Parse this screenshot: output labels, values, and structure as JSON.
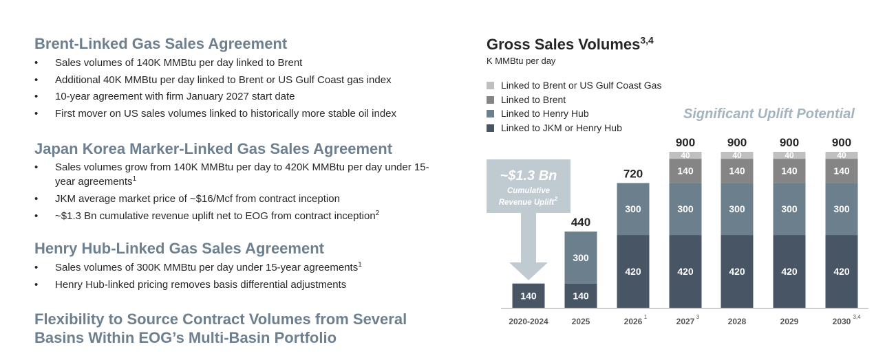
{
  "left": {
    "sections": [
      {
        "title": "Brent-Linked Gas Sales Agreement",
        "bullets": [
          "Sales volumes of 140K MMBtu per day linked to Brent",
          "Additional 40K MMBtu per day linked to Brent or US Gulf Coast gas index",
          "10-year agreement with firm January 2027 start date",
          "First mover on US sales volumes linked to historically more stable oil index"
        ]
      },
      {
        "title": "Japan Korea Marker-Linked Gas Sales Agreement",
        "bullets": [
          "Sales volumes grow from 140K MMBtu per day to 420K MMBtu per day under 15-year agreements",
          "JKM average market price of ~$16/Mcf from contract inception",
          "~$1.3 Bn cumulative revenue uplift net to EOG from contract inception"
        ],
        "sup": [
          "1",
          "",
          "2"
        ]
      },
      {
        "title": "Henry Hub-Linked Gas Sales Agreement",
        "bullets": [
          "Sales volumes of 300K MMBtu per day under 15-year agreements",
          "Henry Hub-linked pricing removes basis differential adjustments"
        ],
        "sup": [
          "1",
          ""
        ]
      }
    ],
    "final_title_line1": "Flexibility to Source Contract Volumes from Several",
    "final_title_line2": "Basins Within EOG’s Multi-Basin Portfolio",
    "bullet_glyph": "•"
  },
  "chart_data": {
    "type": "bar",
    "stacked": true,
    "title": "Gross Sales Volumes",
    "title_sup": "3,4",
    "subtitle": "K MMBtu per day",
    "annotation": "Significant Uplift Potential",
    "callout": {
      "value": "~$1.3 Bn",
      "line1": "Cumulative",
      "line2": "Revenue Uplift",
      "sup": "2"
    },
    "categories": [
      "2020-2024",
      "2025",
      "2026",
      "2027",
      "2028",
      "2029",
      "2030"
    ],
    "category_sups": [
      "",
      "",
      "1",
      "3",
      "",
      "",
      "3,4"
    ],
    "totals": [
      null,
      440,
      720,
      900,
      900,
      900,
      900
    ],
    "ylim": [
      0,
      900
    ],
    "series": [
      {
        "name": "Linked to JKM or Henry Hub",
        "color": "#475565",
        "values": [
          140,
          140,
          420,
          420,
          420,
          420,
          420
        ]
      },
      {
        "name": "Linked to Henry Hub",
        "color": "#6b808c",
        "values": [
          0,
          300,
          300,
          300,
          300,
          300,
          300
        ]
      },
      {
        "name": "Linked to Brent",
        "color": "#858585",
        "values": [
          0,
          0,
          0,
          140,
          140,
          140,
          140
        ]
      },
      {
        "name": "Linked to Brent or US Gulf Coast Gas",
        "color": "#bfbfbf",
        "values": [
          0,
          0,
          0,
          40,
          40,
          40,
          40
        ]
      }
    ],
    "legend_order": [
      "Linked to Brent or US Gulf Coast Gas",
      "Linked to Brent",
      "Linked to Henry Hub",
      "Linked to JKM or Henry Hub"
    ],
    "legend_colors": [
      "#bfbfbf",
      "#858585",
      "#6b808c",
      "#475565"
    ],
    "callout_color": "#bfcbd1"
  }
}
